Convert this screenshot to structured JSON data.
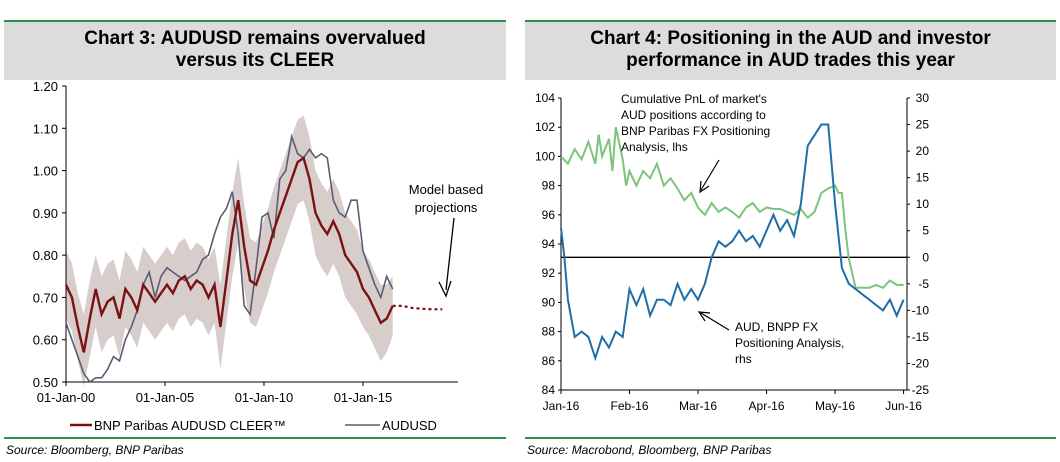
{
  "chart_data": [
    {
      "type": "line",
      "title": "Chart 3: AUDUSD remains overvalued versus its CLEER",
      "title_lines": [
        "Chart 3: AUDUSD remains overvalued",
        "versus its CLEER"
      ],
      "source": "Source: Bloomberg, BNP Paribas",
      "xlim": [
        2000,
        2019.8
      ],
      "ylim": [
        0.5,
        1.2
      ],
      "grid": false,
      "x_ticks": [
        {
          "value": 2000,
          "label": "01-Jan-00"
        },
        {
          "value": 2005,
          "label": "01-Jan-05"
        },
        {
          "value": 2010,
          "label": "01-Jan-10"
        },
        {
          "value": 2015,
          "label": "01-Jan-15"
        }
      ],
      "y_ticks": [
        "0.50",
        "0.60",
        "0.70",
        "0.80",
        "0.90",
        "1.00",
        "1.10",
        "1.20"
      ],
      "legend_position": "bottom",
      "series": [
        {
          "name": "BNP Paribas AUDUSD CLEER™",
          "color": "#7b1113",
          "x": [
            2000.0,
            2000.3,
            2000.6,
            2000.9,
            2001.2,
            2001.5,
            2001.8,
            2002.1,
            2002.4,
            2002.7,
            2003.0,
            2003.3,
            2003.6,
            2003.9,
            2004.2,
            2004.5,
            2004.8,
            2005.1,
            2005.4,
            2005.7,
            2006.0,
            2006.3,
            2006.6,
            2006.9,
            2007.2,
            2007.5,
            2007.8,
            2008.1,
            2008.4,
            2008.7,
            2009.0,
            2009.3,
            2009.6,
            2009.9,
            2010.2,
            2010.5,
            2010.8,
            2011.1,
            2011.4,
            2011.7,
            2012.0,
            2012.3,
            2012.6,
            2012.9,
            2013.2,
            2013.5,
            2013.8,
            2014.1,
            2014.4,
            2014.7,
            2015.0,
            2015.3,
            2015.6,
            2015.9,
            2016.2,
            2016.5
          ],
          "values": [
            0.73,
            0.7,
            0.63,
            0.57,
            0.65,
            0.72,
            0.66,
            0.69,
            0.7,
            0.65,
            0.72,
            0.7,
            0.67,
            0.73,
            0.71,
            0.69,
            0.71,
            0.73,
            0.71,
            0.74,
            0.75,
            0.72,
            0.74,
            0.73,
            0.7,
            0.73,
            0.63,
            0.74,
            0.85,
            0.93,
            0.82,
            0.74,
            0.73,
            0.77,
            0.81,
            0.86,
            0.9,
            0.94,
            0.98,
            1.02,
            1.03,
            0.98,
            0.9,
            0.87,
            0.85,
            0.88,
            0.85,
            0.8,
            0.78,
            0.76,
            0.72,
            0.7,
            0.67,
            0.64,
            0.65,
            0.68
          ]
        },
        {
          "name": "AUDUSD",
          "color": "#5a5d73",
          "x": [
            2000.0,
            2000.3,
            2000.6,
            2000.9,
            2001.2,
            2001.5,
            2001.8,
            2002.1,
            2002.4,
            2002.7,
            2003.0,
            2003.3,
            2003.6,
            2003.9,
            2004.2,
            2004.5,
            2004.8,
            2005.1,
            2005.4,
            2005.7,
            2006.0,
            2006.3,
            2006.6,
            2006.9,
            2007.2,
            2007.5,
            2007.8,
            2008.1,
            2008.4,
            2008.7,
            2009.0,
            2009.3,
            2009.6,
            2009.9,
            2010.2,
            2010.5,
            2010.8,
            2011.1,
            2011.4,
            2011.7,
            2012.0,
            2012.3,
            2012.6,
            2012.9,
            2013.2,
            2013.5,
            2013.8,
            2014.1,
            2014.4,
            2014.7,
            2015.0,
            2015.3,
            2015.6,
            2015.9,
            2016.2,
            2016.5
          ],
          "values": [
            0.64,
            0.6,
            0.56,
            0.52,
            0.5,
            0.51,
            0.51,
            0.53,
            0.56,
            0.55,
            0.6,
            0.63,
            0.67,
            0.73,
            0.76,
            0.7,
            0.75,
            0.77,
            0.76,
            0.75,
            0.74,
            0.75,
            0.76,
            0.79,
            0.8,
            0.85,
            0.89,
            0.91,
            0.95,
            0.85,
            0.68,
            0.66,
            0.77,
            0.89,
            0.9,
            0.84,
            0.98,
            1.0,
            1.08,
            1.04,
            1.03,
            1.05,
            1.03,
            1.04,
            1.03,
            0.93,
            0.9,
            0.89,
            0.93,
            0.93,
            0.81,
            0.77,
            0.73,
            0.7,
            0.75,
            0.72
          ]
        },
        {
          "name": "Model based projections",
          "color": "#7b1113",
          "x": [
            2016.5,
            2017.0,
            2017.5,
            2018.0,
            2018.5,
            2019.0
          ],
          "values": [
            0.68,
            0.68,
            0.675,
            0.673,
            0.672,
            0.672
          ]
        }
      ],
      "band": {
        "color": "#d7cdcb",
        "x": [
          2000.0,
          2000.3,
          2000.6,
          2000.9,
          2001.2,
          2001.5,
          2001.8,
          2002.1,
          2002.4,
          2002.7,
          2003.0,
          2003.3,
          2003.6,
          2003.9,
          2004.2,
          2004.5,
          2004.8,
          2005.1,
          2005.4,
          2005.7,
          2006.0,
          2006.3,
          2006.6,
          2006.9,
          2007.2,
          2007.5,
          2007.8,
          2008.1,
          2008.4,
          2008.7,
          2009.0,
          2009.3,
          2009.6,
          2009.9,
          2010.2,
          2010.5,
          2010.8,
          2011.1,
          2011.4,
          2011.7,
          2012.0,
          2012.3,
          2012.6,
          2012.9,
          2013.2,
          2013.5,
          2013.8,
          2014.1,
          2014.4,
          2014.7,
          2015.0,
          2015.3,
          2015.6,
          2015.9,
          2016.2,
          2016.5
        ],
        "upper": [
          0.81,
          0.78,
          0.71,
          0.66,
          0.74,
          0.8,
          0.75,
          0.78,
          0.79,
          0.74,
          0.81,
          0.79,
          0.76,
          0.82,
          0.8,
          0.78,
          0.8,
          0.82,
          0.8,
          0.83,
          0.84,
          0.81,
          0.83,
          0.82,
          0.79,
          0.82,
          0.73,
          0.84,
          0.95,
          1.03,
          0.92,
          0.84,
          0.83,
          0.87,
          0.91,
          0.96,
          1.0,
          1.04,
          1.08,
          1.12,
          1.13,
          1.08,
          1.0,
          0.97,
          0.95,
          0.98,
          0.95,
          0.9,
          0.88,
          0.86,
          0.81,
          0.79,
          0.76,
          0.73,
          0.73,
          0.75
        ],
        "lower": [
          0.65,
          0.62,
          0.55,
          0.49,
          0.56,
          0.63,
          0.57,
          0.6,
          0.61,
          0.56,
          0.63,
          0.61,
          0.58,
          0.64,
          0.62,
          0.6,
          0.62,
          0.64,
          0.62,
          0.65,
          0.66,
          0.63,
          0.65,
          0.64,
          0.61,
          0.64,
          0.53,
          0.64,
          0.75,
          0.83,
          0.72,
          0.64,
          0.63,
          0.67,
          0.71,
          0.76,
          0.8,
          0.84,
          0.88,
          0.92,
          0.93,
          0.88,
          0.8,
          0.77,
          0.75,
          0.78,
          0.75,
          0.7,
          0.68,
          0.66,
          0.63,
          0.61,
          0.58,
          0.55,
          0.57,
          0.61
        ]
      },
      "annotations": [
        {
          "text_lines": [
            "Model based",
            "projections"
          ]
        }
      ]
    },
    {
      "type": "line",
      "title": "Chart 4: Positioning in the AUD and investor performance in AUD trades this year",
      "title_lines": [
        "Chart 4: Positioning in the AUD and investor",
        "performance in AUD trades this year"
      ],
      "source": "Source: Macrobond, Bloomberg, BNP Paribas",
      "xlim": [
        0,
        5.05
      ],
      "ylim_left": [
        84,
        104
      ],
      "ylim_right": [
        -25,
        30
      ],
      "grid": false,
      "x_ticks": [
        {
          "value": 0,
          "label": "Jan-16"
        },
        {
          "value": 1,
          "label": "Feb-16"
        },
        {
          "value": 2,
          "label": "Mar-16"
        },
        {
          "value": 3,
          "label": "Apr-16"
        },
        {
          "value": 4,
          "label": "May-16"
        },
        {
          "value": 5,
          "label": "Jun-16"
        }
      ],
      "y_ticks_left": [
        "84",
        "86",
        "88",
        "90",
        "92",
        "94",
        "96",
        "98",
        "100",
        "102",
        "104"
      ],
      "y_ticks_right": [
        "-25",
        "-20",
        "-15",
        "-10",
        "-5",
        "0",
        "5",
        "10",
        "15",
        "20",
        "25",
        "30"
      ],
      "reference_line_right": 0,
      "series": [
        {
          "name": "Cumulative PnL of market's AUD positions according to BNP Paribas FX Positioning Analysis, lhs",
          "color": "#7cc47c",
          "axis": "left",
          "x": [
            0.0,
            0.1,
            0.2,
            0.3,
            0.4,
            0.5,
            0.55,
            0.6,
            0.7,
            0.75,
            0.8,
            0.9,
            0.95,
            1.0,
            1.05,
            1.1,
            1.2,
            1.3,
            1.4,
            1.5,
            1.6,
            1.7,
            1.8,
            1.9,
            2.0,
            2.1,
            2.2,
            2.3,
            2.4,
            2.5,
            2.6,
            2.7,
            2.8,
            2.9,
            3.0,
            3.1,
            3.2,
            3.3,
            3.4,
            3.5,
            3.6,
            3.7,
            3.8,
            3.9,
            4.0,
            4.05,
            4.1,
            4.15,
            4.2,
            4.3,
            4.4,
            4.5,
            4.6,
            4.7,
            4.8,
            4.9,
            5.0
          ],
          "values": [
            100,
            99.5,
            100.5,
            99.8,
            101,
            99.5,
            101.5,
            100,
            101.2,
            99,
            102,
            99.8,
            98,
            99,
            98.5,
            98,
            99,
            98.5,
            99.5,
            98,
            98.5,
            97.8,
            97,
            97.5,
            96.5,
            96,
            96.8,
            96.2,
            96.5,
            96.2,
            95.8,
            96.5,
            96.8,
            96.2,
            96.5,
            96.4,
            96.4,
            96.2,
            96,
            96.4,
            95.8,
            96.2,
            97.5,
            97.8,
            98,
            97.5,
            97.5,
            95,
            93,
            91,
            91,
            91,
            91.2,
            91,
            91.5,
            91.2,
            91.2
          ]
        },
        {
          "name": "AUD, BNPP FX Positioning Analysis, rhs",
          "color": "#1e6fa8",
          "axis": "right",
          "x": [
            0.0,
            0.05,
            0.1,
            0.2,
            0.3,
            0.4,
            0.5,
            0.6,
            0.7,
            0.8,
            0.9,
            1.0,
            1.1,
            1.2,
            1.3,
            1.4,
            1.5,
            1.6,
            1.7,
            1.8,
            1.9,
            2.0,
            2.1,
            2.2,
            2.3,
            2.4,
            2.5,
            2.6,
            2.7,
            2.8,
            2.9,
            3.0,
            3.1,
            3.2,
            3.3,
            3.4,
            3.5,
            3.6,
            3.7,
            3.8,
            3.9,
            4.0,
            4.1,
            4.2,
            4.3,
            4.4,
            4.5,
            4.6,
            4.7,
            4.8,
            4.9,
            5.0
          ],
          "values": [
            5.5,
            0,
            -8,
            -15,
            -14,
            -15,
            -19,
            -15,
            -17,
            -14,
            -15,
            -6,
            -9,
            -6,
            -11,
            -8,
            -8,
            -9,
            -5,
            -8,
            -6,
            -8,
            -5,
            0,
            3,
            2,
            3,
            5,
            3,
            4,
            2,
            5,
            8,
            5,
            7,
            4,
            10,
            21,
            23,
            25,
            25,
            10,
            -2,
            -5,
            -6,
            -7,
            -8,
            -9,
            -10,
            -8,
            -11,
            -8
          ]
        }
      ],
      "annotations": [
        {
          "text_lines": [
            "Cumulative PnL of market's",
            "AUD positions according to",
            "BNP Paribas  FX Positioning",
            "Analysis, lhs"
          ]
        },
        {
          "text_lines": [
            "AUD, BNPP FX",
            "Positioning Analysis,",
            "rhs"
          ]
        }
      ]
    }
  ]
}
